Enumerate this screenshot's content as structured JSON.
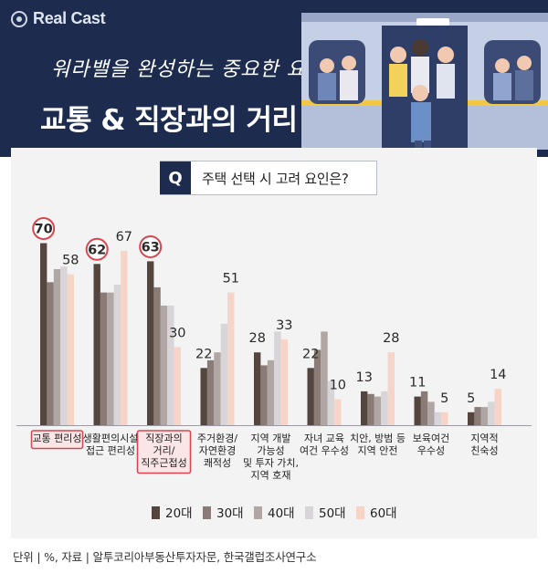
{
  "brand": {
    "name": "Real Cast"
  },
  "header": {
    "subtitle": "워라밸을 완성하는 중요한 요소",
    "title": "교통 & 직장과의 거리"
  },
  "question": {
    "badge": "Q",
    "text": "주택 선택 시 고려 요인은?"
  },
  "colors": {
    "navy": "#1d2c4e",
    "series": [
      "#54463f",
      "#8b7b76",
      "#b0a6a4",
      "#d7d5d8",
      "#f6d4c8"
    ],
    "highlight": "#d9454f"
  },
  "chart_data": {
    "type": "bar",
    "title": "주택 선택 시 고려 요인은?",
    "unit": "%",
    "categories": [
      "교통 편리성",
      "생활편의시설\n접근 편리성",
      "직장과의\n거리/\n직주근접성",
      "주거환경/\n자연환경\n쾌적성",
      "지역 개발\n가능성\n및 투자 가치,\n지역 호재",
      "자녀 교육\n여건 우수성",
      "치안, 방범 등\n지역 안전",
      "보육여건\n우수성",
      "지역적\n친숙성"
    ],
    "highlighted_categories": [
      0,
      2
    ],
    "series": [
      {
        "name": "20대",
        "values": [
          70,
          62,
          63,
          22,
          28,
          22,
          13,
          11,
          5
        ]
      },
      {
        "name": "30대",
        "values": [
          55,
          51,
          53,
          25,
          23,
          29,
          12,
          13,
          7
        ]
      },
      {
        "name": "40대",
        "values": [
          60,
          51,
          46,
          28,
          25,
          36,
          11,
          9,
          7
        ]
      },
      {
        "name": "50대",
        "values": [
          61,
          54,
          46,
          39,
          36,
          17,
          13,
          5,
          9
        ]
      },
      {
        "name": "60대",
        "values": [
          58,
          67,
          30,
          51,
          33,
          10,
          28,
          5,
          14
        ]
      }
    ],
    "data_labels": [
      {
        "category": 0,
        "series": 0,
        "text": "70",
        "circled": true
      },
      {
        "category": 0,
        "series": 4,
        "text": "58",
        "circled": false
      },
      {
        "category": 1,
        "series": 0,
        "text": "62",
        "circled": true
      },
      {
        "category": 1,
        "series": 4,
        "text": "67",
        "circled": false
      },
      {
        "category": 2,
        "series": 0,
        "text": "63",
        "circled": true
      },
      {
        "category": 2,
        "series": 4,
        "text": "30",
        "circled": false
      },
      {
        "category": 3,
        "series": 0,
        "text": "22",
        "circled": false
      },
      {
        "category": 3,
        "series": 4,
        "text": "51",
        "circled": false
      },
      {
        "category": 4,
        "series": 0,
        "text": "28",
        "circled": false
      },
      {
        "category": 4,
        "series": 4,
        "text": "33",
        "circled": false
      },
      {
        "category": 5,
        "series": 0,
        "text": "22",
        "circled": false
      },
      {
        "category": 5,
        "series": 4,
        "text": "10",
        "circled": false
      },
      {
        "category": 6,
        "series": 0,
        "text": "13",
        "circled": false
      },
      {
        "category": 6,
        "series": 4,
        "text": "28",
        "circled": false
      },
      {
        "category": 7,
        "series": 0,
        "text": "11",
        "circled": false
      },
      {
        "category": 7,
        "series": 4,
        "text": "5",
        "circled": false
      },
      {
        "category": 8,
        "series": 0,
        "text": "5",
        "circled": false
      },
      {
        "category": 8,
        "series": 4,
        "text": "14",
        "circled": false
      }
    ],
    "legend": "bottom-center",
    "ylim": [
      0,
      75
    ],
    "grid": false
  },
  "footer": {
    "text": "단위 | %, 자료 | 알투코리아부동산투자자문, 한국갤럽조사연구소"
  }
}
